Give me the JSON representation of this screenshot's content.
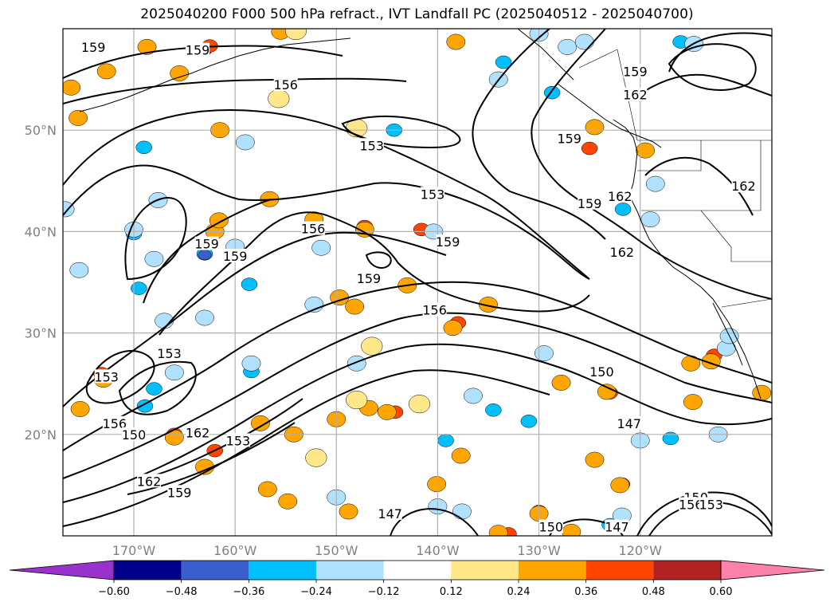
{
  "title": "2025040200 F000 500 hPa refract., IVT Landfall PC (2025040512 - 2025040700)",
  "map": {
    "projection": "PlateCarree",
    "lon_range": [
      -177,
      -107
    ],
    "lat_range": [
      10,
      60
    ],
    "gridlines": true,
    "lat_ticks": [
      {
        "lat": 50,
        "label": "50°N"
      },
      {
        "lat": 40,
        "label": "40°N"
      },
      {
        "lat": 30,
        "label": "30°N"
      },
      {
        "lat": 20,
        "label": "20°N"
      }
    ],
    "lon_ticks": [
      {
        "lon": -170,
        "label": "170°W"
      },
      {
        "lon": -160,
        "label": "160°W"
      },
      {
        "lon": -150,
        "label": "150°W"
      },
      {
        "lon": -140,
        "label": "140°W"
      },
      {
        "lon": -130,
        "label": "130°W"
      },
      {
        "lon": -120,
        "label": "120°W"
      }
    ],
    "contour_labels": [
      {
        "text": "159",
        "lon": -174,
        "lat": 58.2
      },
      {
        "text": "159",
        "lon": -163.7,
        "lat": 57.9
      },
      {
        "text": "156",
        "lon": -155,
        "lat": 54.5
      },
      {
        "text": "153",
        "lon": -146.5,
        "lat": 48.5
      },
      {
        "text": "159",
        "lon": -127,
        "lat": 49.2
      },
      {
        "text": "159",
        "lon": -120.5,
        "lat": 55.8
      },
      {
        "text": "162",
        "lon": -120.5,
        "lat": 53.5
      },
      {
        "text": "153",
        "lon": -140.5,
        "lat": 43.7
      },
      {
        "text": "159",
        "lon": -125,
        "lat": 42.8
      },
      {
        "text": "162",
        "lon": -122,
        "lat": 43.5
      },
      {
        "text": "162",
        "lon": -109.8,
        "lat": 44.5
      },
      {
        "text": "156",
        "lon": -152.3,
        "lat": 40.3
      },
      {
        "text": "159",
        "lon": -162.8,
        "lat": 38.8
      },
      {
        "text": "159",
        "lon": -160,
        "lat": 37.6
      },
      {
        "text": "159",
        "lon": -139,
        "lat": 39
      },
      {
        "text": "162",
        "lon": -121.8,
        "lat": 38
      },
      {
        "text": "159",
        "lon": -146.8,
        "lat": 35.4
      },
      {
        "text": "156",
        "lon": -140.3,
        "lat": 32.3
      },
      {
        "text": "153",
        "lon": -166.5,
        "lat": 28
      },
      {
        "text": "153",
        "lon": -172.7,
        "lat": 25.7
      },
      {
        "text": "150",
        "lon": -123.8,
        "lat": 26.2
      },
      {
        "text": "156",
        "lon": -171.9,
        "lat": 21.1
      },
      {
        "text": "150",
        "lon": -170,
        "lat": 20
      },
      {
        "text": "162",
        "lon": -163.7,
        "lat": 20.2
      },
      {
        "text": "153",
        "lon": -159.7,
        "lat": 19.4
      },
      {
        "text": "147",
        "lon": -121.1,
        "lat": 21.1
      },
      {
        "text": "162",
        "lon": -168.5,
        "lat": 15.4
      },
      {
        "text": "159",
        "lon": -165.5,
        "lat": 14.3
      },
      {
        "text": "147",
        "lon": -144.7,
        "lat": 12.2
      },
      {
        "text": "150",
        "lon": -128.8,
        "lat": 10.9
      },
      {
        "text": "147",
        "lon": -122.3,
        "lat": 10.9
      },
      {
        "text": "150",
        "lon": -114.5,
        "lat": 13.8
      },
      {
        "text": "156",
        "lon": -115,
        "lat": 13.1
      },
      {
        "text": "153",
        "lon": -113,
        "lat": 13.1
      }
    ],
    "shading_blobs": [
      {
        "lon": -163,
        "lat": 57.8,
        "value": 0.48
      },
      {
        "lon": -162.5,
        "lat": 58.3,
        "value": 0.36
      },
      {
        "lon": -176.2,
        "lat": 54.2,
        "value": 0.24
      },
      {
        "lon": -168.7,
        "lat": 58.2,
        "value": 0.24
      },
      {
        "lon": -165.5,
        "lat": 55.6,
        "value": 0.24
      },
      {
        "lon": -161.5,
        "lat": 50,
        "value": 0.24
      },
      {
        "lon": -175.5,
        "lat": 51.2,
        "value": 0.24
      },
      {
        "lon": -155.7,
        "lat": 53.1,
        "value": 0.12
      },
      {
        "lon": -144.3,
        "lat": 50,
        "value": -0.36
      },
      {
        "lon": -148,
        "lat": 50.2,
        "value": 0.12
      },
      {
        "lon": -125,
        "lat": 48.3,
        "value": 0.48
      },
      {
        "lon": -125,
        "lat": 48.2,
        "value": 0.36
      },
      {
        "lon": -118.5,
        "lat": 44.7,
        "value": -0.24
      },
      {
        "lon": -121.7,
        "lat": 42.2,
        "value": -0.36
      },
      {
        "lon": -119,
        "lat": 41.2,
        "value": -0.24
      },
      {
        "lon": -128.7,
        "lat": 53.7,
        "value": -0.36
      },
      {
        "lon": -127.2,
        "lat": 58.2,
        "value": -0.24
      },
      {
        "lon": -116,
        "lat": 58.7,
        "value": -0.36
      },
      {
        "lon": -114.7,
        "lat": 58.5,
        "value": -0.24
      },
      {
        "lon": -133.5,
        "lat": 56.7,
        "value": -0.36
      },
      {
        "lon": -134,
        "lat": 55,
        "value": -0.24
      },
      {
        "lon": -124.5,
        "lat": 50.3,
        "value": 0.24
      },
      {
        "lon": -138.2,
        "lat": 58.7,
        "value": 0.24
      },
      {
        "lon": -119.5,
        "lat": 48,
        "value": 0.24
      },
      {
        "lon": -155.5,
        "lat": 59.7,
        "value": 0.24
      },
      {
        "lon": -154,
        "lat": 59.8,
        "value": 0.12
      },
      {
        "lon": -130,
        "lat": 59.5,
        "value": -0.24
      },
      {
        "lon": -125.5,
        "lat": 58.7,
        "value": -0.24
      },
      {
        "lon": -163,
        "lat": 37.8,
        "value": -0.36
      },
      {
        "lon": -163,
        "lat": 37.7,
        "value": -0.48
      },
      {
        "lon": -160,
        "lat": 38.5,
        "value": -0.24
      },
      {
        "lon": -167,
        "lat": 31.2,
        "value": -0.24
      },
      {
        "lon": -169.5,
        "lat": 34.4,
        "value": -0.36
      },
      {
        "lon": -168,
        "lat": 37.3,
        "value": -0.24
      },
      {
        "lon": -162,
        "lat": 40,
        "value": 0.24
      },
      {
        "lon": -158.6,
        "lat": 34.8,
        "value": -0.36
      },
      {
        "lon": -158.4,
        "lat": 26.2,
        "value": -0.36
      },
      {
        "lon": -158.4,
        "lat": 27,
        "value": -0.24
      },
      {
        "lon": -147.2,
        "lat": 40.5,
        "value": 0.36
      },
      {
        "lon": -147.2,
        "lat": 40.2,
        "value": 0.24
      },
      {
        "lon": -141.6,
        "lat": 40.2,
        "value": 0.36
      },
      {
        "lon": -140.4,
        "lat": 40,
        "value": -0.24
      },
      {
        "lon": -151.5,
        "lat": 38.4,
        "value": -0.24
      },
      {
        "lon": -152.2,
        "lat": 41.2,
        "value": 0.24
      },
      {
        "lon": -156.6,
        "lat": 43.2,
        "value": 0.24
      },
      {
        "lon": -138,
        "lat": 31,
        "value": 0.36
      },
      {
        "lon": -138.5,
        "lat": 30.5,
        "value": 0.24
      },
      {
        "lon": -135,
        "lat": 32.8,
        "value": 0.24
      },
      {
        "lon": -148,
        "lat": 27,
        "value": -0.24
      },
      {
        "lon": -146.5,
        "lat": 28.7,
        "value": 0.12
      },
      {
        "lon": -152.2,
        "lat": 32.8,
        "value": -0.24
      },
      {
        "lon": -149.7,
        "lat": 33.5,
        "value": 0.24
      },
      {
        "lon": -168.9,
        "lat": 22.8,
        "value": -0.36
      },
      {
        "lon": -168,
        "lat": 24.5,
        "value": -0.36
      },
      {
        "lon": -166,
        "lat": 26.1,
        "value": -0.24
      },
      {
        "lon": -173.2,
        "lat": 26,
        "value": 0.36
      },
      {
        "lon": -173,
        "lat": 25.4,
        "value": 0.24
      },
      {
        "lon": -166,
        "lat": 20,
        "value": 0.36
      },
      {
        "lon": -166,
        "lat": 19.7,
        "value": 0.24
      },
      {
        "lon": -162,
        "lat": 18.4,
        "value": 0.36
      },
      {
        "lon": -163,
        "lat": 16.8,
        "value": 0.24
      },
      {
        "lon": -175.3,
        "lat": 22.5,
        "value": 0.24
      },
      {
        "lon": -156.8,
        "lat": 14.6,
        "value": 0.48
      },
      {
        "lon": -156.8,
        "lat": 14.6,
        "value": 0.24
      },
      {
        "lon": -154.2,
        "lat": 20,
        "value": 0.24
      },
      {
        "lon": -150,
        "lat": 21.5,
        "value": 0.24
      },
      {
        "lon": -146.8,
        "lat": 22.6,
        "value": 0.24
      },
      {
        "lon": -141.8,
        "lat": 23,
        "value": 0.12
      },
      {
        "lon": -144.2,
        "lat": 22.2,
        "value": 0.36
      },
      {
        "lon": -145,
        "lat": 22.2,
        "value": 0.24
      },
      {
        "lon": -152,
        "lat": 17.7,
        "value": 0.12
      },
      {
        "lon": -154.8,
        "lat": 13.4,
        "value": 0.24
      },
      {
        "lon": -139.2,
        "lat": 19.4,
        "value": -0.36
      },
      {
        "lon": -136.5,
        "lat": 23.8,
        "value": -0.24
      },
      {
        "lon": -134.5,
        "lat": 22.4,
        "value": -0.36
      },
      {
        "lon": -127.9,
        "lat": 25,
        "value": 0.36
      },
      {
        "lon": -127.8,
        "lat": 25.1,
        "value": 0.24
      },
      {
        "lon": -129.5,
        "lat": 28,
        "value": -0.24
      },
      {
        "lon": -123,
        "lat": 24.1,
        "value": 0.36
      },
      {
        "lon": -123.3,
        "lat": 24.2,
        "value": 0.24
      },
      {
        "lon": -114.6,
        "lat": 23.3,
        "value": 0.48
      },
      {
        "lon": -114.7,
        "lat": 23.2,
        "value": 0.36
      },
      {
        "lon": -114.8,
        "lat": 23.2,
        "value": 0.24
      },
      {
        "lon": -112.7,
        "lat": 27.8,
        "value": 0.36
      },
      {
        "lon": -113,
        "lat": 27.2,
        "value": 0.24
      },
      {
        "lon": -115,
        "lat": 27,
        "value": 0.24
      },
      {
        "lon": -111.5,
        "lat": 28.5,
        "value": -0.24
      },
      {
        "lon": -111.2,
        "lat": 29.7,
        "value": -0.24
      },
      {
        "lon": -108,
        "lat": 24.1,
        "value": 0.24
      },
      {
        "lon": -131,
        "lat": 21.3,
        "value": -0.36
      },
      {
        "lon": -124.5,
        "lat": 17.5,
        "value": 0.24
      },
      {
        "lon": -121.8,
        "lat": 15.1,
        "value": 0.36
      },
      {
        "lon": -122,
        "lat": 15,
        "value": 0.24
      },
      {
        "lon": -121.8,
        "lat": 12,
        "value": -0.24
      },
      {
        "lon": -123,
        "lat": 11.1,
        "value": -0.36
      },
      {
        "lon": -130,
        "lat": 12.4,
        "value": 0.36
      },
      {
        "lon": -130,
        "lat": 12.2,
        "value": 0.24
      },
      {
        "lon": -133,
        "lat": 10.2,
        "value": 0.36
      },
      {
        "lon": -134,
        "lat": 10.3,
        "value": 0.24
      },
      {
        "lon": -126.8,
        "lat": 10.4,
        "value": 0.24
      },
      {
        "lon": -137.7,
        "lat": 17.9,
        "value": 0.24
      },
      {
        "lon": -148.8,
        "lat": 12.4,
        "value": 0.24
      },
      {
        "lon": -150,
        "lat": 13.8,
        "value": -0.24
      },
      {
        "lon": -140.1,
        "lat": 15.1,
        "value": 0.24
      },
      {
        "lon": -137.6,
        "lat": 12.4,
        "value": -0.24
      },
      {
        "lon": -140,
        "lat": 12.9,
        "value": -0.24
      },
      {
        "lon": -117,
        "lat": 19.6,
        "value": -0.36
      },
      {
        "lon": -120,
        "lat": 19.4,
        "value": -0.24
      },
      {
        "lon": -112.3,
        "lat": 20,
        "value": -0.24
      },
      {
        "lon": -148,
        "lat": 23.4,
        "value": 0.12
      },
      {
        "lon": -143,
        "lat": 34.7,
        "value": 0.24
      },
      {
        "lon": -148.2,
        "lat": 32.6,
        "value": 0.24
      },
      {
        "lon": -157.5,
        "lat": 21.1,
        "value": 0.24
      },
      {
        "lon": -161.6,
        "lat": 41.1,
        "value": 0.24
      },
      {
        "lon": -175.4,
        "lat": 36.2,
        "value": -0.24
      },
      {
        "lon": -170,
        "lat": 39.8,
        "value": -0.36
      },
      {
        "lon": -170,
        "lat": 40.2,
        "value": -0.24
      },
      {
        "lon": -169,
        "lat": 48.3,
        "value": -0.36
      },
      {
        "lon": -172.7,
        "lat": 55.8,
        "value": 0.24
      },
      {
        "lon": -176.8,
        "lat": 42.2,
        "value": -0.24
      },
      {
        "lon": -167.6,
        "lat": 43.1,
        "value": -0.24
      },
      {
        "lon": -159,
        "lat": 48.8,
        "value": -0.24
      },
      {
        "lon": -163,
        "lat": 31.5,
        "value": -0.24
      }
    ]
  },
  "colorbar": {
    "levels": [
      -0.6,
      -0.48,
      -0.36,
      -0.24,
      -0.12,
      0.12,
      0.24,
      0.36,
      0.48,
      0.6
    ],
    "tick_labels": [
      "−0.60",
      "−0.48",
      "−0.36",
      "−0.24",
      "−0.12",
      "0.12",
      "0.24",
      "0.36",
      "0.48",
      "0.60"
    ],
    "colors": [
      "#9932CC",
      "#00008B",
      "#3A5FCD",
      "#00BFFF",
      "#B0E2FF",
      "#FFFFFF",
      "#FFE78A",
      "#FFA500",
      "#FF4500",
      "#B22222",
      "#FF82AB"
    ],
    "extend": "both"
  }
}
